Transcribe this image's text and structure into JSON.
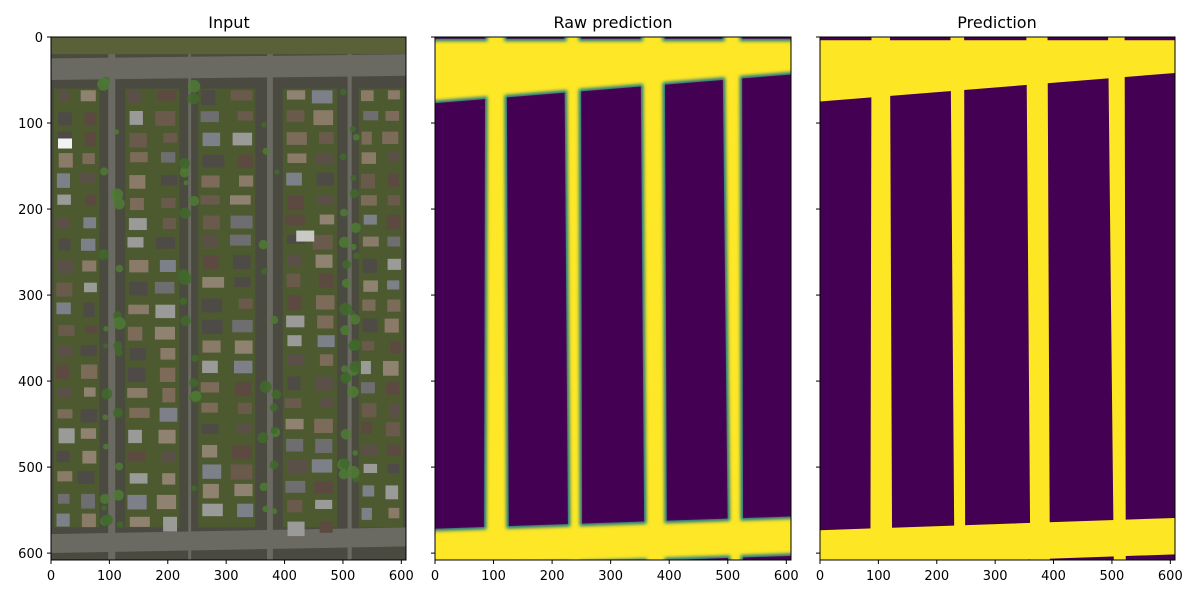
{
  "panels": [
    {
      "title": "Input",
      "show_yticks": true
    },
    {
      "title": "Raw prediction",
      "show_yticks": false
    },
    {
      "title": "Prediction",
      "show_yticks": false
    }
  ],
  "axes": {
    "x_ticks": [
      "0",
      "100",
      "200",
      "300",
      "400",
      "500",
      "600"
    ],
    "y_ticks": [
      "0",
      "100",
      "200",
      "300",
      "400",
      "500",
      "600"
    ],
    "x_range": [
      0,
      608
    ],
    "y_range": [
      0,
      608
    ]
  },
  "colors": {
    "mask_background": "#440154",
    "mask_road": "#fde725",
    "mask_edge": "#21918c"
  }
}
